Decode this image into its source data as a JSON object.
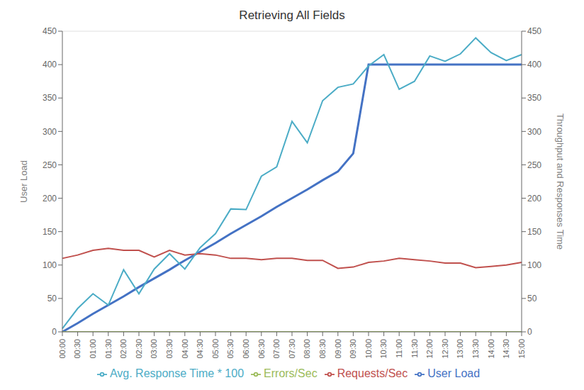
{
  "chart_data": {
    "type": "line",
    "title": "Retrieving All Fields",
    "ylabel": "User Load",
    "y2label": "Throughput and Responses Time",
    "ylim": [
      0,
      450
    ],
    "yticks": [
      0,
      50,
      100,
      150,
      200,
      250,
      300,
      350,
      400,
      450
    ],
    "y2lim": [
      0,
      450
    ],
    "y2ticks": [
      0,
      50,
      100,
      150,
      200,
      250,
      300,
      350,
      400,
      450
    ],
    "categories": [
      "00:00",
      "00:30",
      "01:00",
      "01:30",
      "02:00",
      "02:30",
      "03:00",
      "03:30",
      "04:00",
      "04:30",
      "05:00",
      "05:30",
      "06:00",
      "06:30",
      "07:00",
      "07:30",
      "08:00",
      "08:30",
      "09:00",
      "09:30",
      "10:00",
      "10:30",
      "11:00",
      "11:30",
      "12:00",
      "12:30",
      "13:00",
      "13:30",
      "14:00",
      "14:30",
      "15:00"
    ],
    "series": [
      {
        "name": "User Load",
        "color": "#4472C4",
        "values": [
          0,
          13,
          27,
          40,
          53,
          67,
          80,
          93,
          107,
          120,
          133,
          147,
          160,
          173,
          187,
          200,
          213,
          227,
          240,
          267,
          400,
          400,
          400,
          400,
          400,
          400,
          400,
          400,
          400,
          400,
          400
        ]
      },
      {
        "name": "Requests/Sec",
        "color": "#C0504D",
        "values": [
          110,
          115,
          122,
          125,
          122,
          122,
          112,
          122,
          115,
          117,
          115,
          110,
          110,
          108,
          110,
          110,
          107,
          107,
          95,
          97,
          104,
          106,
          110,
          108,
          106,
          103,
          103,
          96,
          98,
          100,
          104
        ]
      },
      {
        "name": "Errors/Sec",
        "color": "#9BBB59",
        "values": [
          0,
          0,
          0,
          0,
          0,
          0,
          0,
          0,
          0,
          0,
          0,
          0,
          0,
          0,
          0,
          0,
          0,
          0,
          0,
          0,
          0,
          0,
          0,
          0,
          0,
          0,
          0,
          0,
          0,
          0,
          0
        ]
      },
      {
        "name": "Avg. Response Time * 100",
        "color": "#4BACC6",
        "values": [
          5,
          35,
          57,
          40,
          93,
          57,
          94,
          117,
          94,
          126,
          147,
          184,
          183,
          233,
          247,
          315,
          283,
          346,
          366,
          371,
          398,
          415,
          363,
          375,
          413,
          405,
          416,
          440,
          418,
          406,
          415
        ]
      }
    ],
    "grid": true,
    "legend": "bottom"
  }
}
